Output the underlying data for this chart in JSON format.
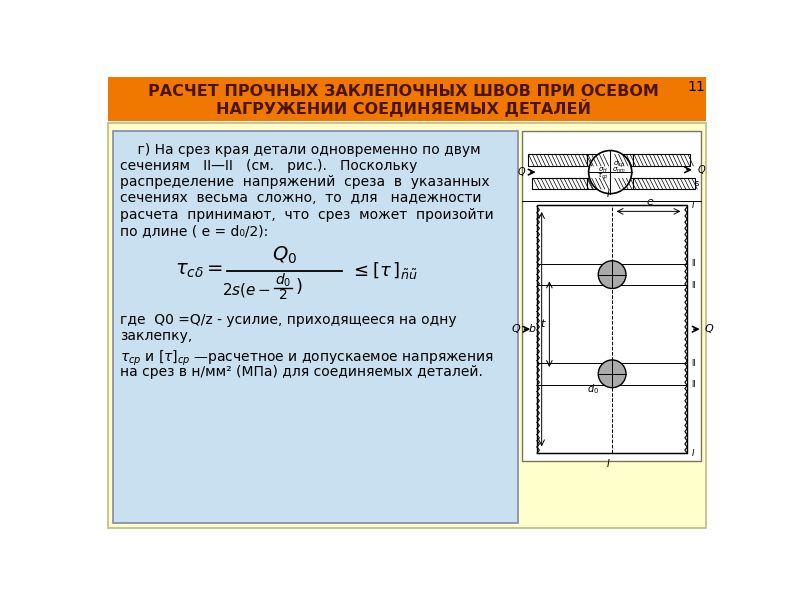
{
  "title_line1": "РАСЧЕТ ПРОЧНЫХ ЗАКЛЕПОЧНЫХ ШВОВ ПРИ ОСЕВОМ",
  "title_line2": "НАГРУЖЕНИИ СОЕДИНЯЕМЫХ ДЕТАЛЕЙ",
  "title_bg": "#F07800",
  "title_text_color": "#4A1500",
  "slide_bg": "#FFFFFF",
  "content_bg": "#C8E0F0",
  "yellow_bg": "#FFFFCC",
  "page_number": "11",
  "outer_border_color": "#D4D4AA"
}
